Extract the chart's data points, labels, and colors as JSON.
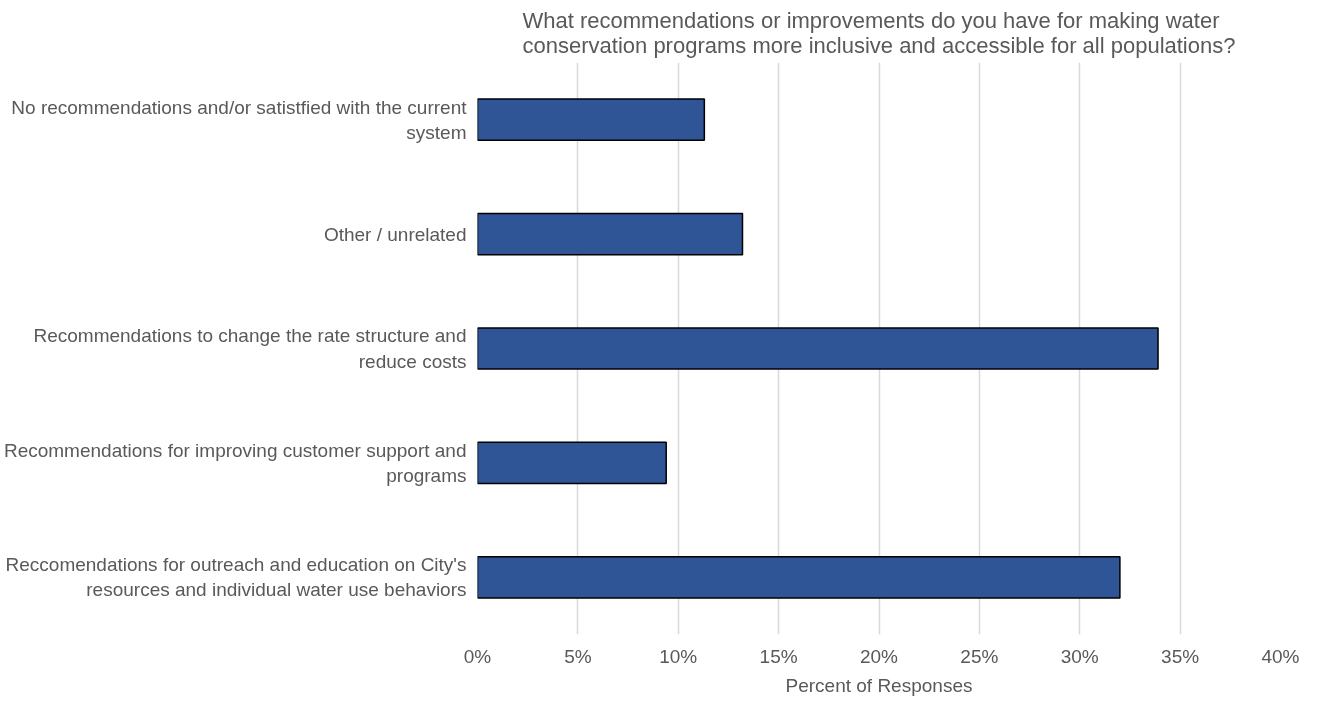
{
  "chart_data": {
    "type": "bar",
    "orientation": "horizontal",
    "title": "What recommendations or improvements do you have for making water conservation programs more inclusive and accessible for all populations?",
    "categories": [
      "No recommendations and/or satistfied with the current system",
      "Other / unrelated",
      "Recommendations to change the rate structure and reduce costs",
      "Recommendations for improving customer support and programs",
      "Reccomendations for outreach and education on City's resources and individual water use behaviors"
    ],
    "values": [
      11.3,
      13.2,
      33.9,
      9.4,
      32.0
    ],
    "color": "#2f5597",
    "xlabel": "Percent of Responses",
    "xlim": [
      0,
      40
    ],
    "xticks": [
      {
        "value": 0,
        "label": "0%"
      },
      {
        "value": 5,
        "label": "5%"
      },
      {
        "value": 10,
        "label": "10%"
      },
      {
        "value": 15,
        "label": "15%"
      },
      {
        "value": 20,
        "label": "20%"
      },
      {
        "value": 25,
        "label": "25%"
      },
      {
        "value": 30,
        "label": "30%"
      },
      {
        "value": 35,
        "label": "35%"
      },
      {
        "value": 40,
        "label": "40%"
      }
    ],
    "grid": "x"
  }
}
